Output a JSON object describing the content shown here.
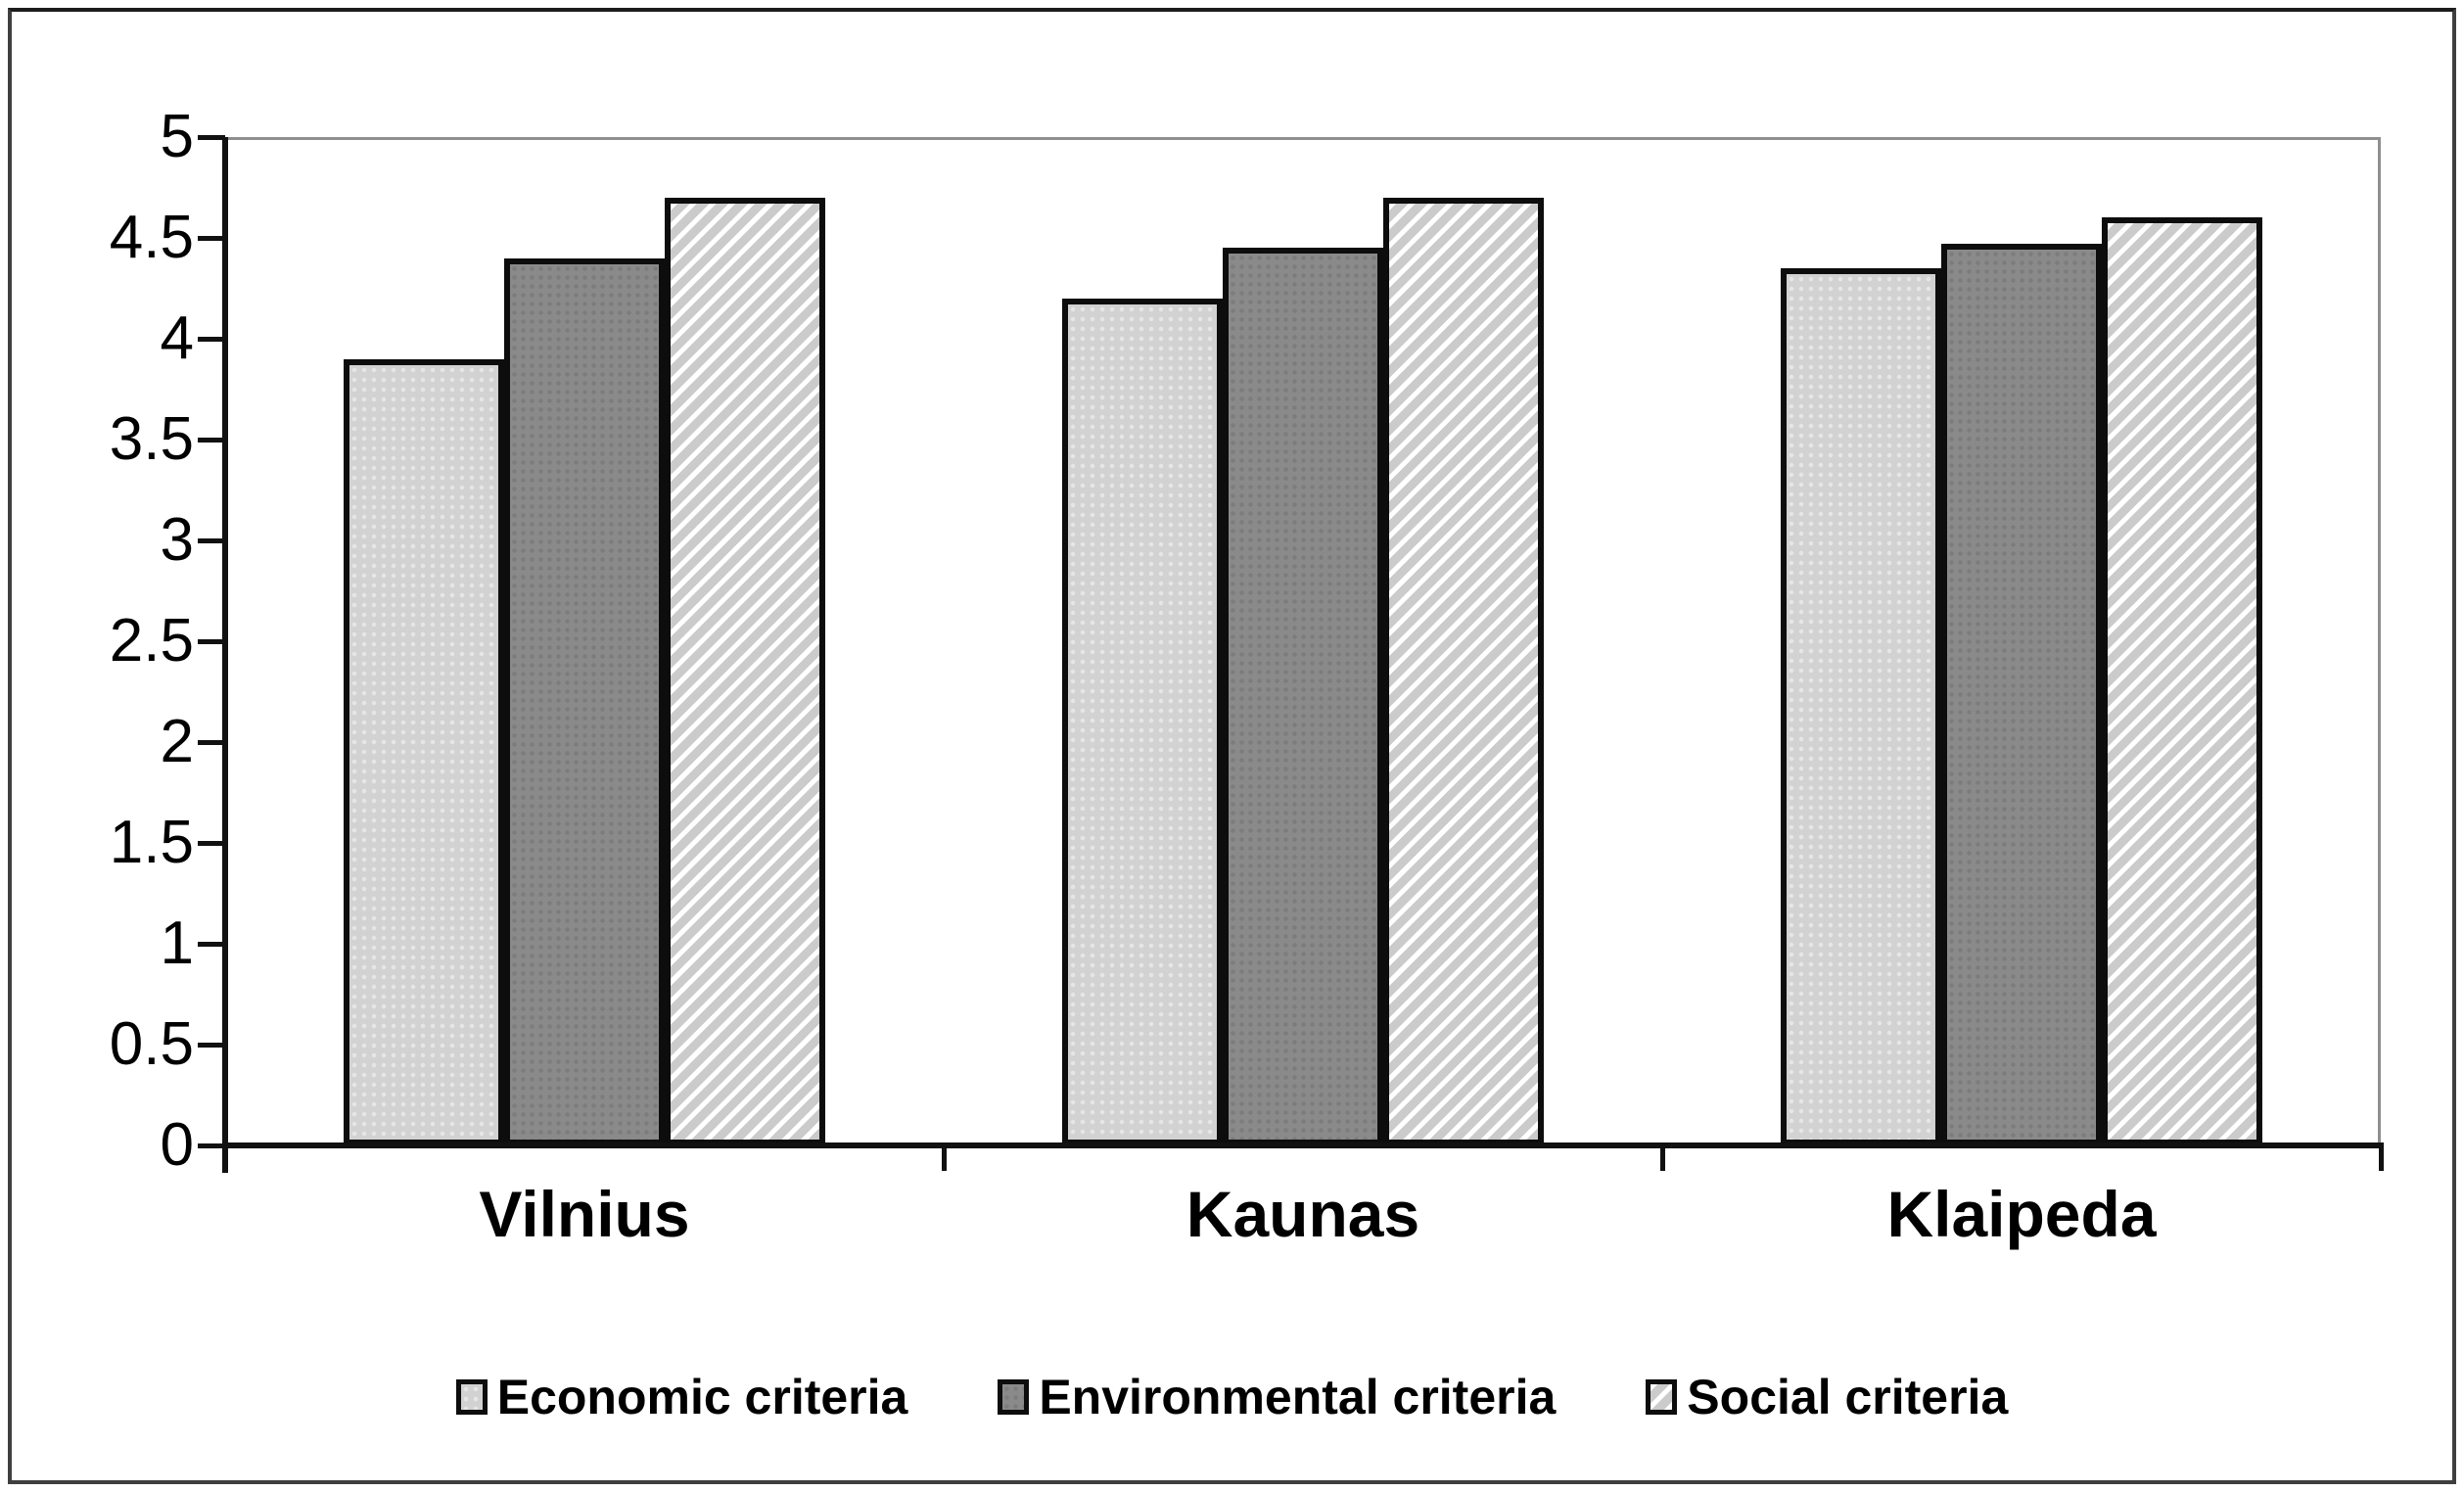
{
  "chart_data": {
    "type": "bar",
    "title": "",
    "xlabel": "",
    "ylabel": "",
    "categories": [
      "Vilnius",
      "Kaunas",
      "Klaipeda"
    ],
    "series": [
      {
        "name": "Economic criteria",
        "values": [
          3.9,
          4.2,
          4.35
        ],
        "fill": "#d2d2d2",
        "pattern": "speckle-light"
      },
      {
        "name": "Environmental criteria",
        "values": [
          4.4,
          4.45,
          4.47
        ],
        "fill": "#8a8a8a",
        "pattern": "speckle-dark"
      },
      {
        "name": "Social criteria",
        "values": [
          4.7,
          4.7,
          4.6
        ],
        "fill": "#cbcbcb",
        "pattern": "diagonal-hatch"
      }
    ],
    "ylim": [
      0,
      5
    ],
    "ytick_step": 0.5,
    "ytick_labels": [
      "0",
      "0.5",
      "1",
      "1.5",
      "2",
      "2.5",
      "3",
      "3.5",
      "4",
      "4.5",
      "5"
    ],
    "grid": "off",
    "legend_position": "bottom-center",
    "colors": {
      "axis": "#111111",
      "plot_frame": "#8f8f8f",
      "bar_border": "#0d0d0d",
      "hatch_stripe": "#ffffff",
      "text": "#000000",
      "background": "#ffffff"
    }
  }
}
